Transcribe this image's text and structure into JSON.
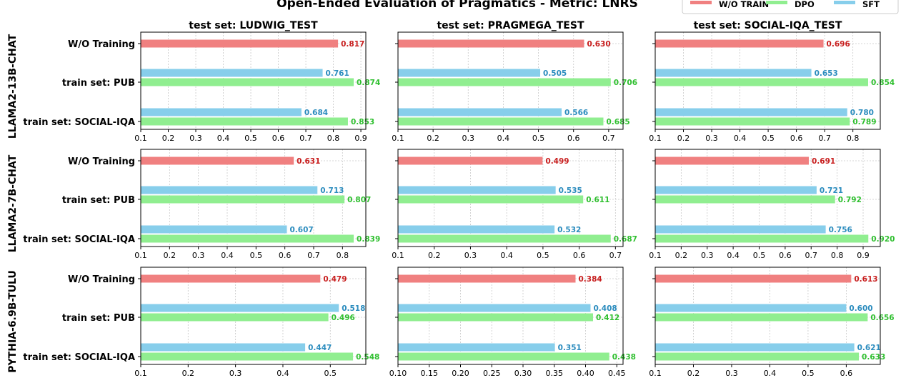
{
  "chart_data": {
    "type": "bar",
    "orientation": "horizontal",
    "title": "Open-Ended Evaluation of Pragmatics - Metric: LNRS",
    "legend": {
      "placement": "top-right",
      "entries": [
        {
          "name": "W/O TRAIN",
          "color": "#f08080"
        },
        {
          "name": "DPO",
          "color": "#90ee90"
        },
        {
          "name": "SFT",
          "color": "#87ceeb"
        }
      ]
    },
    "label_colors": {
      "W/O TRAIN": "#c81e1e",
      "DPO": "#2fbf2f",
      "SFT": "#2b8cbe"
    },
    "grid": true,
    "categories": [
      "W/O Training",
      "train set: PUB",
      "train set: SOCIAL-IQA"
    ],
    "rows": [
      "LLAMA2-13B-CHAT",
      "LLAMA2-7B-CHAT",
      "PYTHIA-6.9B-TULU"
    ],
    "columns": [
      "test set: LUDWIG_TEST",
      "test set: PRAGMEGA_TEST",
      "test set: SOCIAL-IQA_TEST"
    ],
    "panels": [
      {
        "row": 0,
        "col": 0,
        "xlim": [
          0.1,
          0.918
        ],
        "ticks": [
          "0.1",
          "0.2",
          "0.3",
          "0.4",
          "0.5",
          "0.6",
          "0.7",
          "0.8",
          "0.9"
        ],
        "wo": 0.817,
        "pub": {
          "SFT": 0.761,
          "DPO": 0.874
        },
        "social": {
          "SFT": 0.684,
          "DPO": 0.853
        }
      },
      {
        "row": 0,
        "col": 1,
        "xlim": [
          0.1,
          0.741
        ],
        "ticks": [
          "0.1",
          "0.2",
          "0.3",
          "0.4",
          "0.5",
          "0.6",
          "0.7"
        ],
        "wo": 0.63,
        "pub": {
          "SFT": 0.505,
          "DPO": 0.706
        },
        "social": {
          "SFT": 0.566,
          "DPO": 0.685
        }
      },
      {
        "row": 0,
        "col": 2,
        "xlim": [
          0.1,
          0.897
        ],
        "ticks": [
          "0.1",
          "0.2",
          "0.3",
          "0.4",
          "0.5",
          "0.6",
          "0.7",
          "0.8"
        ],
        "wo": 0.696,
        "pub": {
          "SFT": 0.653,
          "DPO": 0.854
        },
        "social": {
          "SFT": 0.78,
          "DPO": 0.789
        }
      },
      {
        "row": 1,
        "col": 0,
        "xlim": [
          0.1,
          0.881
        ],
        "ticks": [
          "0.1",
          "0.2",
          "0.3",
          "0.4",
          "0.5",
          "0.6",
          "0.7",
          "0.8"
        ],
        "wo": 0.631,
        "pub": {
          "SFT": 0.713,
          "DPO": 0.807
        },
        "social": {
          "SFT": 0.607,
          "DPO": 0.839
        }
      },
      {
        "row": 1,
        "col": 1,
        "xlim": [
          0.1,
          0.721
        ],
        "ticks": [
          "0.1",
          "0.2",
          "0.3",
          "0.4",
          "0.5",
          "0.6",
          "0.7"
        ],
        "wo": 0.499,
        "pub": {
          "SFT": 0.535,
          "DPO": 0.611
        },
        "social": {
          "SFT": 0.532,
          "DPO": 0.687
        }
      },
      {
        "row": 1,
        "col": 2,
        "xlim": [
          0.1,
          0.966
        ],
        "ticks": [
          "0.1",
          "0.2",
          "0.3",
          "0.4",
          "0.5",
          "0.6",
          "0.7",
          "0.8",
          "0.9"
        ],
        "wo": 0.691,
        "pub": {
          "SFT": 0.721,
          "DPO": 0.792
        },
        "social": {
          "SFT": 0.756,
          "DPO": 0.92
        }
      },
      {
        "row": 2,
        "col": 0,
        "xlim": [
          0.1,
          0.575
        ],
        "ticks": [
          "0.1",
          "0.2",
          "0.3",
          "0.4",
          "0.5"
        ],
        "wo": 0.479,
        "pub": {
          "SFT": 0.518,
          "DPO": 0.496
        },
        "social": {
          "SFT": 0.447,
          "DPO": 0.548
        }
      },
      {
        "row": 2,
        "col": 1,
        "xlim": [
          0.1,
          0.46
        ],
        "ticks": [
          "0.10",
          "0.15",
          "0.20",
          "0.25",
          "0.30",
          "0.35",
          "0.40",
          "0.45"
        ],
        "wo": 0.384,
        "pub": {
          "SFT": 0.408,
          "DPO": 0.412
        },
        "social": {
          "SFT": 0.351,
          "DPO": 0.438
        }
      },
      {
        "row": 2,
        "col": 2,
        "xlim": [
          0.1,
          0.689
        ],
        "ticks": [
          "0.1",
          "0.2",
          "0.3",
          "0.4",
          "0.5",
          "0.6"
        ],
        "wo": 0.613,
        "pub": {
          "SFT": 0.6,
          "DPO": 0.656
        },
        "social": {
          "SFT": 0.621,
          "DPO": 0.633
        }
      }
    ]
  }
}
